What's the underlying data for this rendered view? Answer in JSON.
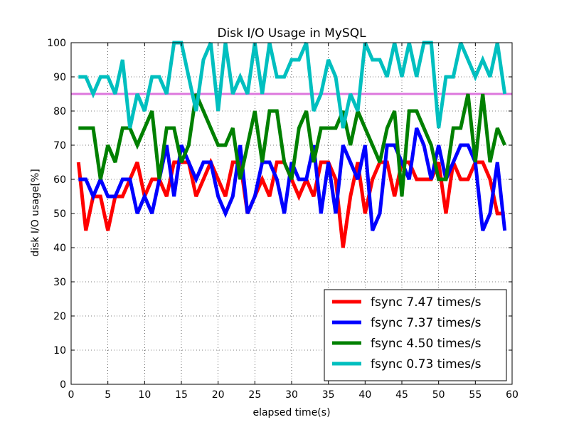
{
  "chart_data": {
    "type": "line",
    "title": "Disk I/O Usage in MySQL",
    "xlabel": "elapsed time(s)",
    "ylabel": "disk I/O usage[%]",
    "xlim": [
      0,
      60
    ],
    "ylim": [
      0,
      100
    ],
    "xticks": [
      0,
      5,
      10,
      15,
      20,
      25,
      30,
      35,
      40,
      45,
      50,
      55,
      60
    ],
    "yticks": [
      0,
      10,
      20,
      30,
      40,
      50,
      60,
      70,
      80,
      90,
      100
    ],
    "grid": true,
    "legend_position": "lower-right",
    "reference_line": {
      "y": 85,
      "color": "#dd77dd"
    },
    "series": [
      {
        "name": "fsync 7.47 times/s",
        "color": "#ff0000",
        "x": [
          1,
          2,
          3,
          4,
          5,
          6,
          7,
          8,
          9,
          10,
          11,
          12,
          13,
          14,
          15,
          16,
          17,
          18,
          19,
          20,
          21,
          22,
          23,
          24,
          25,
          26,
          27,
          28,
          29,
          30,
          31,
          32,
          33,
          34,
          35,
          36,
          37,
          38,
          39,
          40,
          41,
          42,
          43,
          44,
          45,
          46,
          47,
          48,
          49,
          50,
          51,
          52,
          53,
          54,
          55,
          56,
          57,
          58,
          59
        ],
        "values": [
          65,
          45,
          55,
          55,
          45,
          55,
          55,
          60,
          65,
          55,
          60,
          60,
          55,
          65,
          65,
          65,
          55,
          60,
          65,
          60,
          55,
          65,
          65,
          50,
          55,
          60,
          55,
          65,
          65,
          60,
          55,
          60,
          55,
          65,
          65,
          60,
          40,
          55,
          65,
          50,
          60,
          65,
          65,
          55,
          65,
          65,
          60,
          60,
          60,
          65,
          50,
          65,
          60,
          60,
          65,
          65,
          60,
          50,
          50
        ]
      },
      {
        "name": "fsync 7.37 times/s",
        "color": "#0000ff",
        "x": [
          1,
          2,
          3,
          4,
          5,
          6,
          7,
          8,
          9,
          10,
          11,
          12,
          13,
          14,
          15,
          16,
          17,
          18,
          19,
          20,
          21,
          22,
          23,
          24,
          25,
          26,
          27,
          28,
          29,
          30,
          31,
          32,
          33,
          34,
          35,
          36,
          37,
          38,
          39,
          40,
          41,
          42,
          43,
          44,
          45,
          46,
          47,
          48,
          49,
          50,
          51,
          52,
          53,
          54,
          55,
          56,
          57,
          58,
          59
        ],
        "values": [
          60,
          60,
          55,
          60,
          55,
          55,
          60,
          60,
          50,
          55,
          50,
          60,
          70,
          55,
          70,
          65,
          60,
          65,
          65,
          55,
          50,
          55,
          70,
          50,
          55,
          65,
          65,
          60,
          50,
          65,
          60,
          60,
          70,
          50,
          65,
          50,
          70,
          65,
          60,
          70,
          45,
          50,
          70,
          70,
          65,
          60,
          75,
          70,
          60,
          70,
          60,
          65,
          70,
          70,
          65,
          45,
          50,
          65,
          45
        ]
      },
      {
        "name": "fsync 4.50 times/s",
        "color": "#008000",
        "x": [
          1,
          2,
          3,
          4,
          5,
          6,
          7,
          8,
          9,
          10,
          11,
          12,
          13,
          14,
          15,
          16,
          17,
          18,
          19,
          20,
          21,
          22,
          23,
          24,
          25,
          26,
          27,
          28,
          29,
          30,
          31,
          32,
          33,
          34,
          35,
          36,
          37,
          38,
          39,
          40,
          41,
          42,
          43,
          44,
          45,
          46,
          47,
          48,
          49,
          50,
          51,
          52,
          53,
          54,
          55,
          56,
          57,
          58,
          59
        ],
        "values": [
          75,
          75,
          75,
          60,
          70,
          65,
          75,
          75,
          70,
          75,
          80,
          60,
          75,
          75,
          65,
          70,
          85,
          80,
          75,
          70,
          70,
          75,
          60,
          70,
          80,
          65,
          80,
          80,
          65,
          60,
          75,
          80,
          65,
          75,
          75,
          75,
          80,
          70,
          80,
          75,
          70,
          65,
          75,
          80,
          55,
          80,
          80,
          75,
          70,
          60,
          60,
          75,
          75,
          85,
          65,
          85,
          65,
          75,
          70
        ]
      },
      {
        "name": "fsync 0.73 times/s",
        "color": "#00bfbf",
        "x": [
          1,
          2,
          3,
          4,
          5,
          6,
          7,
          8,
          9,
          10,
          11,
          12,
          13,
          14,
          15,
          16,
          17,
          18,
          19,
          20,
          21,
          22,
          23,
          24,
          25,
          26,
          27,
          28,
          29,
          30,
          31,
          32,
          33,
          34,
          35,
          36,
          37,
          38,
          39,
          40,
          41,
          42,
          43,
          44,
          45,
          46,
          47,
          48,
          49,
          50,
          51,
          52,
          53,
          54,
          55,
          56,
          57,
          58,
          59
        ],
        "values": [
          90,
          90,
          85,
          90,
          90,
          85,
          95,
          75,
          85,
          80,
          90,
          90,
          85,
          100,
          100,
          90,
          80,
          95,
          100,
          80,
          100,
          85,
          90,
          85,
          100,
          85,
          100,
          90,
          90,
          95,
          95,
          100,
          80,
          85,
          95,
          90,
          75,
          85,
          80,
          100,
          95,
          95,
          90,
          100,
          90,
          100,
          90,
          100,
          100,
          75,
          90,
          90,
          100,
          95,
          90,
          95,
          90,
          100,
          85
        ]
      }
    ]
  }
}
